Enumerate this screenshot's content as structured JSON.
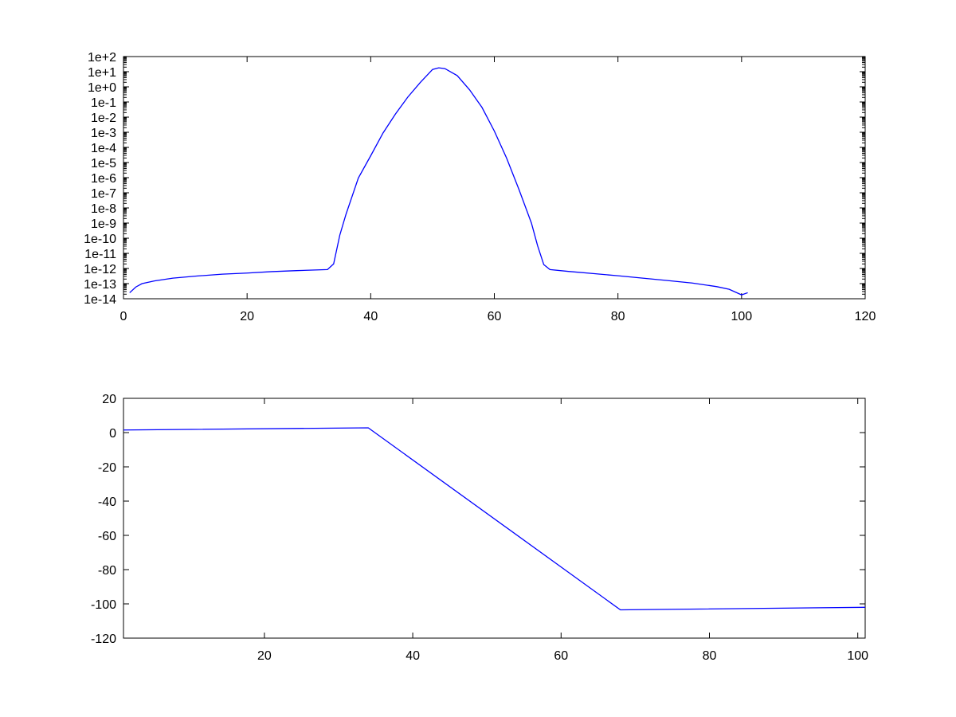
{
  "chart_data": [
    {
      "type": "line",
      "title": "",
      "xlabel": "",
      "ylabel": "",
      "xlim": [
        0,
        120
      ],
      "ylim": [
        1e-14,
        100
      ],
      "yscale": "log",
      "grid": false,
      "legend": "none",
      "x_ticks": [
        0,
        20,
        40,
        60,
        80,
        100,
        120
      ],
      "x_tick_labels": [
        "0",
        "20",
        "40",
        "60",
        "80",
        "100",
        "120"
      ],
      "y_ticks": [
        100,
        10,
        1,
        0.1,
        0.01,
        0.001,
        0.0001,
        1e-05,
        1e-06,
        1e-07,
        1e-08,
        1e-09,
        1e-10,
        1e-11,
        1e-12,
        1e-13,
        1e-14
      ],
      "y_tick_labels": [
        "1e+2",
        "1e+1",
        "1e+0",
        "1e-1",
        "1e-2",
        "1e-3",
        "1e-4",
        "1e-5",
        "1e-6",
        "1e-7",
        "1e-8",
        "1e-9",
        "1e-10",
        "1e-11",
        "1e-12",
        "1e-13",
        "1e-14"
      ],
      "series": [
        {
          "color": "#0000ff",
          "x": [
            1,
            2,
            3,
            5,
            8,
            12,
            16,
            20,
            24,
            28,
            33,
            34,
            35,
            36,
            38,
            40,
            42,
            44,
            46,
            48,
            50,
            51,
            52,
            54,
            56,
            58,
            60,
            62,
            64,
            66,
            67,
            68,
            69,
            72,
            76,
            80,
            84,
            88,
            92,
            96,
            98,
            100,
            101
          ],
          "y": [
            2.5e-14,
            6e-14,
            1e-13,
            1.5e-13,
            2.3e-13,
            3.2e-13,
            4.2e-13,
            5e-13,
            6.2e-13,
            7.2e-13,
            8.5e-13,
            2e-12,
            1.6e-10,
            3.8e-09,
            9.5e-07,
            2.8e-05,
            0.0009,
            0.016,
            0.21,
            1.9,
            14,
            18,
            16,
            5.5,
            0.63,
            0.044,
            0.0012,
            1.9e-05,
            1.6e-07,
            1e-09,
            3.2e-11,
            1.8e-12,
            8.5e-13,
            6.4e-13,
            4.6e-13,
            3.3e-13,
            2.3e-13,
            1.6e-13,
            1.1e-13,
            6.3e-14,
            4.2e-14,
            1.8e-14,
            2.5e-14
          ]
        }
      ]
    },
    {
      "type": "line",
      "title": "",
      "xlabel": "",
      "ylabel": "",
      "xlim": [
        1,
        101
      ],
      "ylim": [
        -120,
        20
      ],
      "yscale": "linear",
      "grid": false,
      "legend": "none",
      "x_ticks": [
        20,
        40,
        60,
        80,
        100
      ],
      "x_tick_labels": [
        "20",
        "40",
        "60",
        "80",
        "100"
      ],
      "y_ticks": [
        20,
        0,
        -20,
        -40,
        -60,
        -80,
        -100,
        -120
      ],
      "y_tick_labels": [
        "20",
        "0",
        "-20",
        "-40",
        "-60",
        "-80",
        "-100",
        "-120"
      ],
      "series": [
        {
          "color": "#0000ff",
          "x": [
            1,
            34,
            68,
            101
          ],
          "y": [
            1.5,
            2.8,
            -103.5,
            -102
          ]
        }
      ]
    }
  ]
}
